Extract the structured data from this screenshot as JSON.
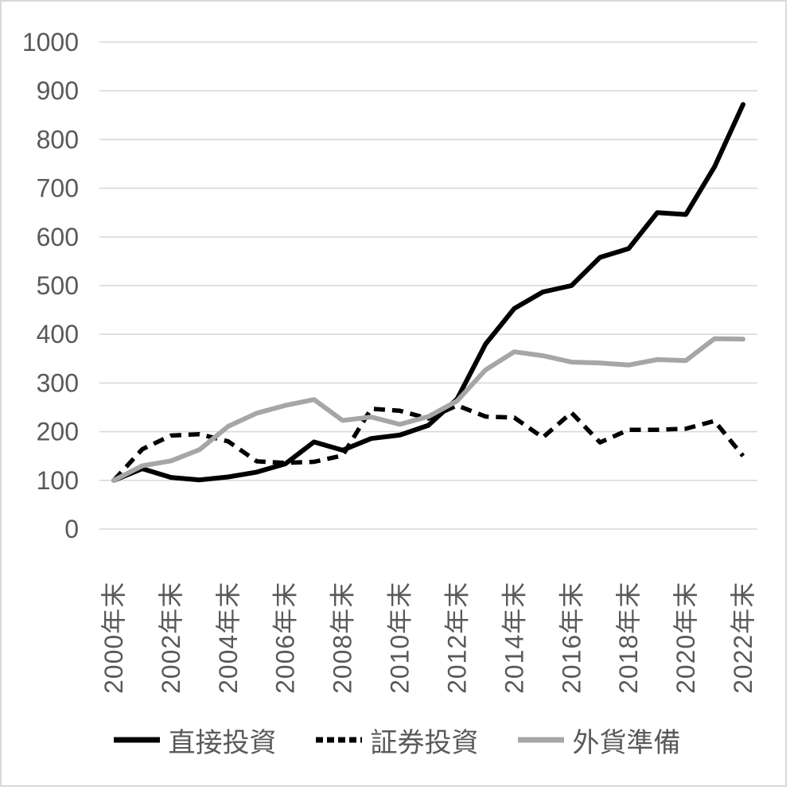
{
  "chart_data": {
    "type": "line",
    "title": "",
    "years": [
      2000,
      2001,
      2002,
      2003,
      2004,
      2005,
      2006,
      2007,
      2008,
      2009,
      2010,
      2011,
      2012,
      2013,
      2014,
      2015,
      2016,
      2017,
      2018,
      2019,
      2020,
      2021,
      2022
    ],
    "x_tick_labels": [
      "2000年末",
      "2002年末",
      "2004年末",
      "2006年末",
      "2008年末",
      "2010年末",
      "2012年末",
      "2014年末",
      "2016年末",
      "2018年末",
      "2020年末",
      "2022年末"
    ],
    "x_tick_every": 2,
    "y_axis": {
      "min": 0,
      "max": 1000,
      "step": 100,
      "tick_labels": [
        "0",
        "100",
        "200",
        "300",
        "400",
        "500",
        "600",
        "700",
        "800",
        "900",
        "1000"
      ]
    },
    "grid": true,
    "legend_position": "bottom",
    "axis_label_color": "#595959",
    "grid_color": "#d9d9d9",
    "series": [
      {
        "name": "直接投資",
        "color": "#000000",
        "style": "solid",
        "values": [
          100,
          124,
          106,
          101,
          107,
          117,
          134,
          179,
          162,
          186,
          193,
          213,
          267,
          380,
          453,
          487,
          500,
          558,
          576,
          650,
          646,
          744,
          872
        ]
      },
      {
        "name": "証券投資",
        "color": "#000000",
        "style": "dashed",
        "values": [
          100,
          164,
          192,
          195,
          180,
          139,
          136,
          138,
          151,
          247,
          243,
          227,
          254,
          231,
          229,
          188,
          239,
          178,
          204,
          204,
          206,
          222,
          150
        ]
      },
      {
        "name": "外貨準備",
        "color": "#a6a6a6",
        "style": "solid",
        "values": [
          100,
          130,
          140,
          163,
          211,
          238,
          254,
          266,
          223,
          230,
          215,
          231,
          263,
          327,
          364,
          356,
          343,
          341,
          337,
          348,
          346,
          391,
          390
        ]
      }
    ]
  }
}
